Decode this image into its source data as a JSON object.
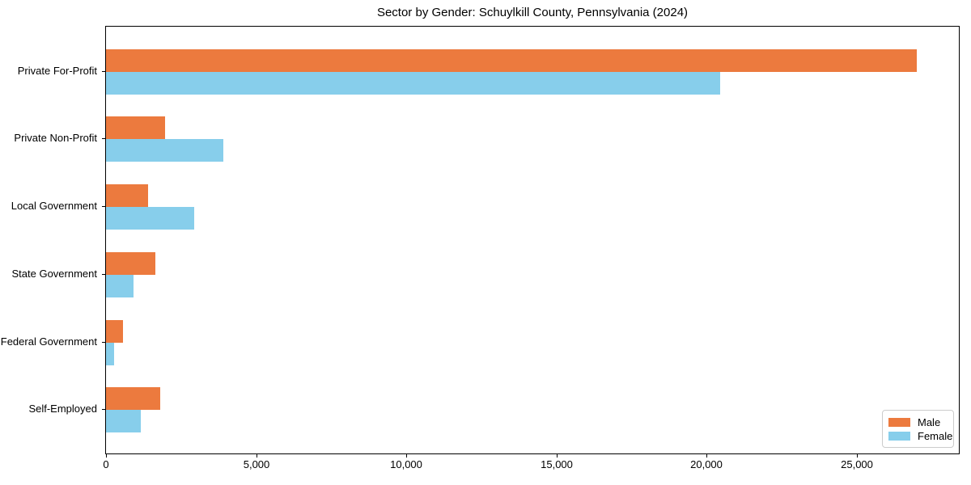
{
  "chart_data": {
    "type": "bar",
    "orientation": "horizontal",
    "title": "Sector by Gender: Schuylkill County, Pennsylvania (2024)",
    "categories": [
      "Private For-Profit",
      "Private Non-Profit",
      "Local Government",
      "State Government",
      "Federal Government",
      "Self-Employed"
    ],
    "series": [
      {
        "name": "Male",
        "color": "#EC7A3E",
        "values": [
          27000,
          1970,
          1400,
          1640,
          570,
          1800
        ]
      },
      {
        "name": "Female",
        "color": "#87CEEB",
        "values": [
          20450,
          3900,
          2940,
          920,
          280,
          1150
        ]
      }
    ],
    "xlabel": "",
    "ylabel": "",
    "xlim": [
      0,
      28400
    ],
    "xticks": [
      0,
      5000,
      10000,
      15000,
      20000,
      25000
    ],
    "xtick_labels": [
      "0",
      "5,000",
      "10,000",
      "15,000",
      "20,000",
      "25,000"
    ],
    "grid": false,
    "legend": {
      "position": "lower right",
      "entries": [
        "Male",
        "Female"
      ]
    }
  },
  "colors": {
    "male": "#EC7A3E",
    "female": "#87CEEB",
    "spine": "#000000",
    "legend_border": "#cccccc",
    "background": "#ffffff"
  }
}
